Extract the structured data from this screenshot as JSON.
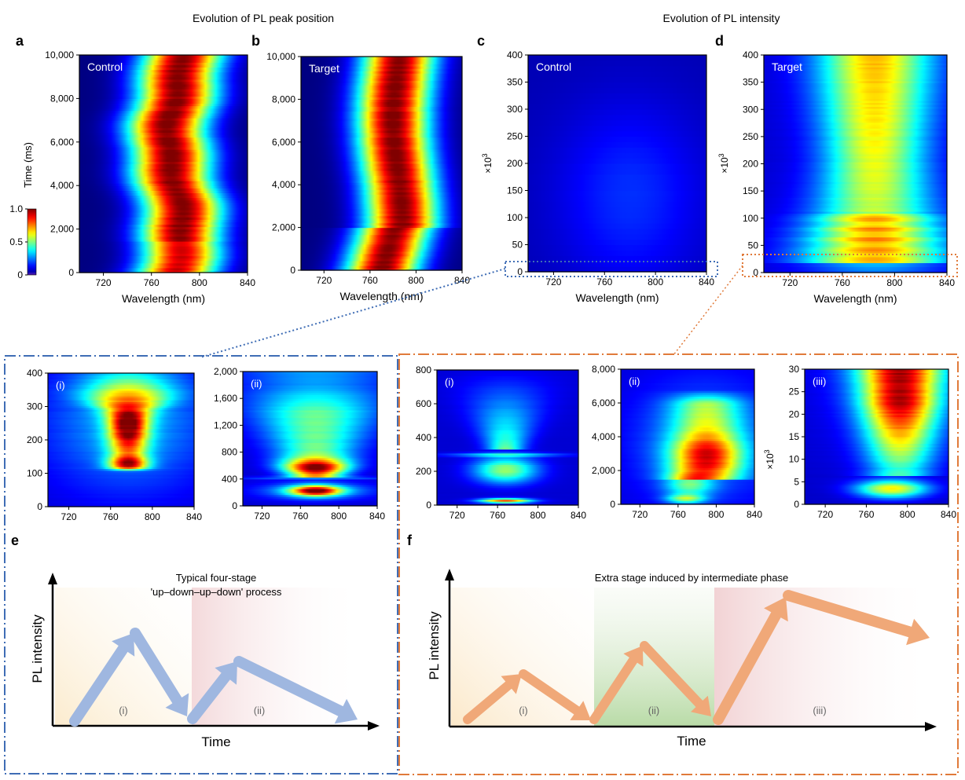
{
  "headings": {
    "peak": "Evolution of PL peak position",
    "intensity": "Evolution of PL intensity"
  },
  "common": {
    "wavelength_label": "Wavelength (nm)",
    "time_label": "Time (ms)",
    "x1e3_label": "×10",
    "x1e3_exp": "3",
    "x_ticks": [
      "720",
      "760",
      "800",
      "840"
    ],
    "colorbar_ticks": [
      "1.0",
      "0.5",
      "0"
    ]
  },
  "colors": {
    "blue_frame": "#3f6db5",
    "orange_frame": "#e07a3a",
    "blue_arrow": "#9fb7e0",
    "orange_arrow": "#f0a878"
  },
  "chart_data": [
    {
      "id": "a",
      "type": "heatmap",
      "letter": "a",
      "label": "Control",
      "xlabel": "Wavelength (nm)",
      "ylabel": "Time (ms)",
      "xlim": [
        700,
        840
      ],
      "ylim": [
        0,
        10000
      ],
      "y_ticks": [
        "0",
        "2,000",
        "4,000",
        "6,000",
        "8,000",
        "10,000"
      ],
      "colorbar": {
        "range": [
          0,
          1
        ],
        "ticks": [
          "0",
          "0.5",
          "1.0"
        ]
      }
    },
    {
      "id": "b",
      "type": "heatmap",
      "letter": "b",
      "label": "Target",
      "xlabel": "Wavelength (nm)",
      "ylabel": "",
      "xlim": [
        700,
        840
      ],
      "ylim": [
        0,
        10000
      ],
      "y_ticks": [
        "0",
        "2,000",
        "4,000",
        "6,000",
        "8,000",
        "10,000"
      ]
    },
    {
      "id": "c",
      "type": "heatmap",
      "letter": "c",
      "label": "Control",
      "xlabel": "Wavelength (nm)",
      "ylabel": "×10^3",
      "xlim": [
        700,
        840
      ],
      "ylim": [
        0,
        400
      ],
      "y_ticks": [
        "0",
        "50",
        "100",
        "150",
        "200",
        "250",
        "300",
        "350",
        "400"
      ]
    },
    {
      "id": "d",
      "type": "heatmap",
      "letter": "d",
      "label": "Target",
      "xlabel": "Wavelength (nm)",
      "ylabel": "×10^3",
      "xlim": [
        700,
        840
      ],
      "ylim": [
        0,
        400
      ],
      "y_ticks": [
        "0",
        "50",
        "100",
        "150",
        "200",
        "250",
        "300",
        "350",
        "400"
      ]
    },
    {
      "id": "ci",
      "type": "heatmap",
      "label": "(i)",
      "xlim": [
        700,
        840
      ],
      "ylim": [
        0,
        400
      ],
      "y_ticks": [
        "0",
        "100",
        "200",
        "300",
        "400"
      ]
    },
    {
      "id": "cii",
      "type": "heatmap",
      "label": "(ii)",
      "xlim": [
        700,
        840
      ],
      "ylim": [
        0,
        2000
      ],
      "y_ticks": [
        "0",
        "400",
        "800",
        "1,200",
        "1,600",
        "2,000"
      ]
    },
    {
      "id": "di",
      "type": "heatmap",
      "label": "(i)",
      "xlim": [
        700,
        840
      ],
      "ylim": [
        0,
        800
      ],
      "y_ticks": [
        "0",
        "200",
        "400",
        "600",
        "800"
      ]
    },
    {
      "id": "dii",
      "type": "heatmap",
      "label": "(ii)",
      "xlim": [
        700,
        840
      ],
      "ylim": [
        0,
        8000
      ],
      "y_ticks": [
        "0",
        "2,000",
        "4,000",
        "6,000",
        "8,000"
      ]
    },
    {
      "id": "diii",
      "type": "heatmap",
      "label": "(iii)",
      "xlim": [
        700,
        840
      ],
      "ylim": [
        0,
        30
      ],
      "ylabel": "×10^3",
      "y_ticks": [
        "0",
        "5",
        "10",
        "15",
        "20",
        "25",
        "30"
      ]
    }
  ],
  "schematic_e": {
    "letter": "e",
    "title_line1": "Typical four-stage",
    "title_line2": "'up–down–up–down' process",
    "ylabel": "PL intensity",
    "xlabel": "Time",
    "stages": [
      "(i)",
      "(ii)"
    ]
  },
  "schematic_f": {
    "letter": "f",
    "title": "Extra stage induced by intermediate phase",
    "ylabel": "PL intensity",
    "xlabel": "Time",
    "stages": [
      "(i)",
      "(ii)",
      "(iii)"
    ]
  }
}
